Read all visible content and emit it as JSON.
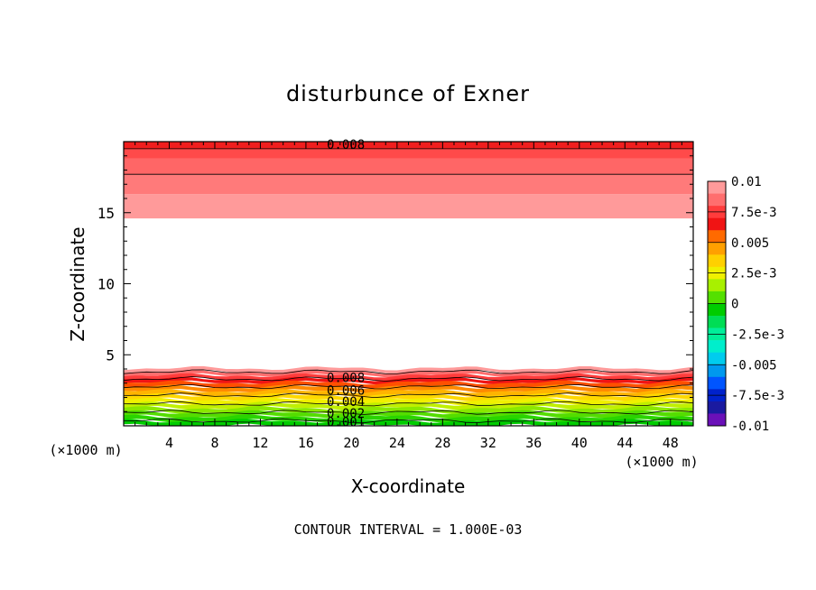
{
  "chart_data": {
    "type": "heatmap",
    "subtype": "filled-contour",
    "title": "disturbunce of Exner",
    "xlabel": "X-coordinate",
    "ylabel": "Z-coordinate",
    "x_unit_label": "(×1000 m)",
    "y_unit_label": "(×1000 m)",
    "xlim": [
      0,
      50
    ],
    "ylim": [
      0,
      20
    ],
    "x_ticks": [
      4,
      8,
      12,
      16,
      20,
      24,
      28,
      32,
      36,
      40,
      44,
      48
    ],
    "y_ticks": [
      5,
      10,
      15
    ],
    "footer": "CONTOUR INTERVAL = 1.000E-03",
    "contour_interval": 0.001,
    "contour_labels": [
      {
        "text": "0.008",
        "x": 19.5,
        "y": 19.8
      },
      {
        "text": "0.008",
        "x": 19.5,
        "y": 3.4
      },
      {
        "text": "0.006",
        "x": 19.5,
        "y": 2.5
      },
      {
        "text": "0.004",
        "x": 19.5,
        "y": 1.7
      },
      {
        "text": "0.002",
        "x": 19.5,
        "y": 0.9
      },
      {
        "text": "0.001",
        "x": 19.5,
        "y": 0.3
      }
    ],
    "colorbar": {
      "labels": [
        "0.01",
        "7.5e-3",
        "0.005",
        "2.5e-3",
        "0",
        "-2.5e-3",
        "-0.005",
        "-7.5e-3",
        "-0.01"
      ],
      "range": [
        -0.01,
        0.01
      ],
      "colors": [
        "#ff9a9a",
        "#ff6e6e",
        "#ff3c3c",
        "#f01414",
        "#ff6a00",
        "#ffa000",
        "#ffd000",
        "#f0f000",
        "#a8f000",
        "#54e000",
        "#00cc00",
        "#00dd55",
        "#00ee99",
        "#00eecc",
        "#00ccee",
        "#0099ee",
        "#0055ff",
        "#0022cc",
        "#1a1aa0",
        "#6a10b8"
      ]
    },
    "top_region": {
      "z_bottom": 14.6,
      "z_top": 20,
      "bands": [
        {
          "z_from": 14.6,
          "z_to": 16.3,
          "color": "#ff9a9a"
        },
        {
          "z_from": 16.3,
          "z_to": 17.7,
          "color": "#ff7a7a"
        },
        {
          "z_from": 17.7,
          "z_to": 18.8,
          "color": "#ff6666"
        },
        {
          "z_from": 18.8,
          "z_to": 19.5,
          "color": "#ff4a4a"
        },
        {
          "z_from": 19.5,
          "z_to": 20.0,
          "color": "#f01e1e"
        }
      ],
      "contour_lines_z": [
        17.7,
        19.5
      ]
    },
    "bottom_region": {
      "z_bottom": 0,
      "z_top": 4.0,
      "bands": [
        {
          "z_from": 3.8,
          "z_to": 4.05,
          "color": "#ff9a9a"
        },
        {
          "z_from": 3.55,
          "z_to": 3.8,
          "color": "#ff6e6e"
        },
        {
          "z_from": 3.3,
          "z_to": 3.55,
          "color": "#ff3c3c"
        },
        {
          "z_from": 3.05,
          "z_to": 3.3,
          "color": "#f01414"
        },
        {
          "z_from": 2.75,
          "z_to": 3.05,
          "color": "#ff5000"
        },
        {
          "z_from": 2.45,
          "z_to": 2.75,
          "color": "#ff8a00"
        },
        {
          "z_from": 2.15,
          "z_to": 2.45,
          "color": "#ffb400"
        },
        {
          "z_from": 1.85,
          "z_to": 2.15,
          "color": "#ffd800"
        },
        {
          "z_from": 1.55,
          "z_to": 1.85,
          "color": "#f0f000"
        },
        {
          "z_from": 1.25,
          "z_to": 1.55,
          "color": "#c0f000"
        },
        {
          "z_from": 0.95,
          "z_to": 1.25,
          "color": "#8ae800"
        },
        {
          "z_from": 0.65,
          "z_to": 0.95,
          "color": "#54dd00"
        },
        {
          "z_from": 0.35,
          "z_to": 0.65,
          "color": "#2ad400"
        },
        {
          "z_from": 0.0,
          "z_to": 0.35,
          "color": "#00cc00"
        }
      ],
      "contour_lines_z": [
        3.8,
        3.3,
        2.75,
        2.15,
        1.55,
        0.95,
        0.35
      ]
    }
  }
}
